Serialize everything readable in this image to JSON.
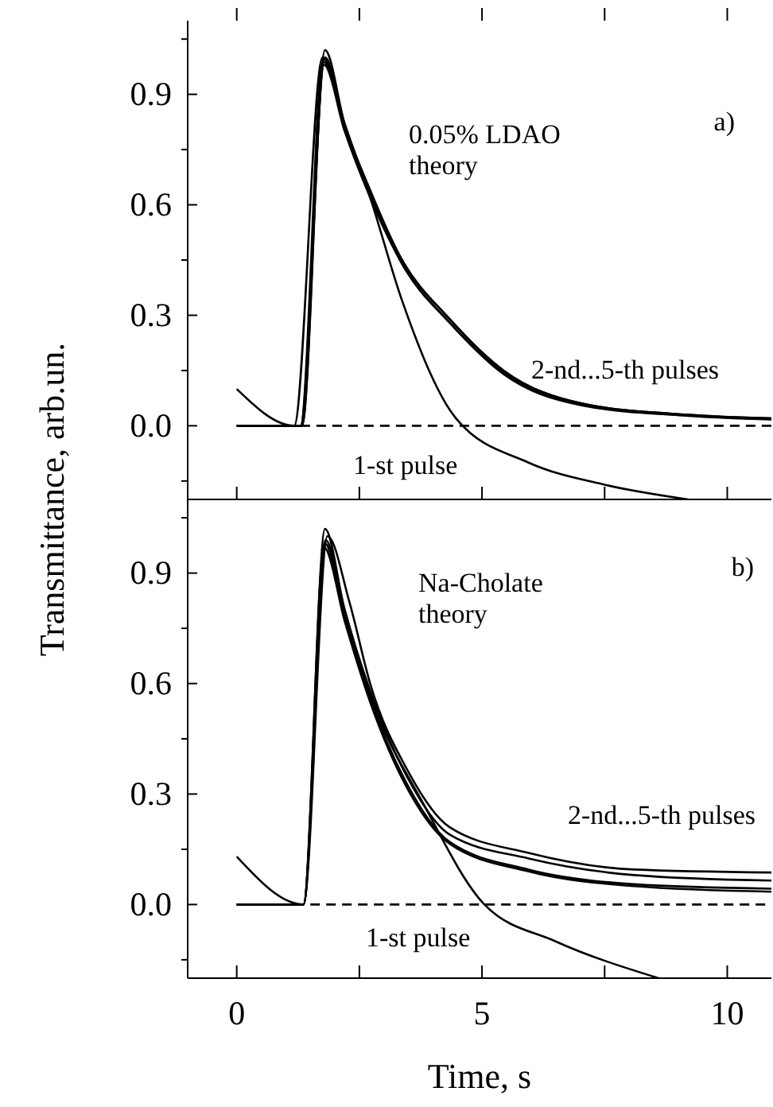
{
  "chart_data": [
    {
      "type": "line",
      "ylabel": "Transmittance, arb.un.",
      "xlim": [
        -1,
        10.9
      ],
      "ylim": [
        -0.2,
        1.1
      ],
      "xticks": [
        {
          "value": 0,
          "label": null
        },
        {
          "value": 2.5,
          "label": null
        },
        {
          "value": 5,
          "label": null
        },
        {
          "value": 7.5,
          "label": null
        },
        {
          "value": 10,
          "label": null
        }
      ],
      "yticks": [
        {
          "value": -0.15,
          "label": null
        },
        {
          "value": 0,
          "label": "0.0"
        },
        {
          "value": 0.15,
          "label": null
        },
        {
          "value": 0.3,
          "label": "0.3"
        },
        {
          "value": 0.45,
          "label": null
        },
        {
          "value": 0.6,
          "label": "0.6"
        },
        {
          "value": 0.75,
          "label": null
        },
        {
          "value": 0.9,
          "label": "0.9"
        },
        {
          "value": 1.05,
          "label": null
        }
      ],
      "tick_labels": "y",
      "grid": false,
      "marker": "none",
      "annotations": [
        "a)",
        "0.05% LDAO\ntheory",
        "2-nd...5-th pulses",
        "1-st pulse"
      ],
      "series": [
        {
          "color": "#000000",
          "x": [
            0,
            1.17,
            1.75,
            2.2,
            2.72,
            3.37,
            4.47,
            5.95,
            7.5,
            9.2
          ],
          "values": [
            0.1,
            0,
            1.0,
            0.82,
            0.62,
            0.34,
            0.02,
            -0.1,
            -0.16,
            -0.2
          ]
        },
        {
          "color": "#000000",
          "x": [
            0,
            1.33,
            1.8,
            2.2,
            2.72,
            3.37,
            4.34,
            5.44,
            7.05,
            9.2,
            10.9
          ],
          "values": [
            0,
            0,
            1.02,
            0.82,
            0.64,
            0.45,
            0.29,
            0.15,
            0.06,
            0.03,
            0.02
          ]
        },
        {
          "color": "#000000",
          "x": [
            0,
            1.3,
            1.8,
            2.2,
            2.72,
            3.37,
            4.34,
            5.44,
            7.05,
            9.2,
            10.9
          ],
          "values": [
            0,
            0,
            1.0,
            0.81,
            0.63,
            0.44,
            0.28,
            0.145,
            0.058,
            0.028,
            0.018
          ]
        },
        {
          "color": "#000000",
          "x": [
            0,
            1.33,
            1.78,
            2.2,
            2.72,
            3.37,
            4.34,
            5.44,
            7.05,
            9.2,
            10.9
          ],
          "values": [
            0,
            0,
            0.98,
            0.8,
            0.62,
            0.44,
            0.28,
            0.14,
            0.055,
            0.027,
            0.017
          ]
        },
        {
          "color": "#000000",
          "x": [
            0,
            1.3,
            1.76,
            2.2,
            2.72,
            3.37,
            4.34,
            5.44,
            7.05,
            9.2,
            10.9
          ],
          "values": [
            0,
            0,
            0.99,
            0.81,
            0.63,
            0.45,
            0.29,
            0.15,
            0.06,
            0.03,
            0.02
          ]
        },
        {
          "color": "#000000",
          "line_style": "dashed",
          "x": [
            1.3,
            10.9
          ],
          "values": [
            0,
            0
          ]
        }
      ]
    },
    {
      "type": "line",
      "xlabel": "Time, s",
      "xlim": [
        -1,
        10.9
      ],
      "ylim": [
        -0.2,
        1.1
      ],
      "xticks": [
        0,
        {
          "value": 2.5,
          "label": null
        },
        5,
        {
          "value": 7.5,
          "label": null
        },
        10
      ],
      "yticks": [
        {
          "value": -0.15,
          "label": null
        },
        {
          "value": 0,
          "label": "0.0"
        },
        {
          "value": 0.15,
          "label": null
        },
        {
          "value": 0.3,
          "label": "0.3"
        },
        {
          "value": 0.45,
          "label": null
        },
        {
          "value": 0.6,
          "label": "0.6"
        },
        {
          "value": 0.75,
          "label": null
        },
        {
          "value": 0.9,
          "label": "0.9"
        },
        {
          "value": 1.05,
          "label": null
        }
      ],
      "grid": false,
      "marker": "none",
      "annotations": [
        "Na-Cholate\ntheory",
        "b)",
        "2-nd...5-th pulses",
        "1-st pulse"
      ],
      "series": [
        {
          "color": "#000000",
          "x": [
            0,
            1.36,
            1.81,
            2.2,
            2.72,
            3.82,
            5.05,
            6.5,
            8.6
          ],
          "values": [
            0.13,
            0,
            0.99,
            0.8,
            0.57,
            0.27,
            0,
            -0.1,
            -0.2
          ]
        },
        {
          "color": "#000000",
          "x": [
            0,
            1.36,
            1.85,
            2.3,
            2.72,
            3.5,
            4.34,
            5.95,
            8.1,
            10.9
          ],
          "values": [
            0,
            0,
            1.0,
            0.82,
            0.6,
            0.36,
            0.21,
            0.14,
            0.095,
            0.087
          ]
        },
        {
          "color": "#000000",
          "x": [
            0,
            1.36,
            1.8,
            2.2,
            2.72,
            3.5,
            4.34,
            5.95,
            8.1,
            10.9
          ],
          "values": [
            0,
            0,
            1.02,
            0.8,
            0.58,
            0.34,
            0.19,
            0.125,
            0.08,
            0.065
          ]
        },
        {
          "color": "#000000",
          "x": [
            0,
            1.36,
            1.8,
            2.2,
            2.72,
            3.5,
            4.34,
            5.95,
            8.1,
            10.9
          ],
          "values": [
            0,
            0,
            0.98,
            0.78,
            0.56,
            0.32,
            0.17,
            0.095,
            0.055,
            0.043
          ]
        },
        {
          "color": "#000000",
          "x": [
            0,
            1.36,
            1.78,
            2.2,
            2.72,
            3.5,
            4.34,
            5.95,
            8.1,
            10.9
          ],
          "values": [
            0,
            0,
            0.97,
            0.77,
            0.55,
            0.31,
            0.165,
            0.09,
            0.05,
            0.035
          ]
        },
        {
          "color": "#000000",
          "line_style": "dashed",
          "x": [
            1.5,
            10.9
          ],
          "values": [
            0,
            0
          ]
        }
      ]
    }
  ]
}
